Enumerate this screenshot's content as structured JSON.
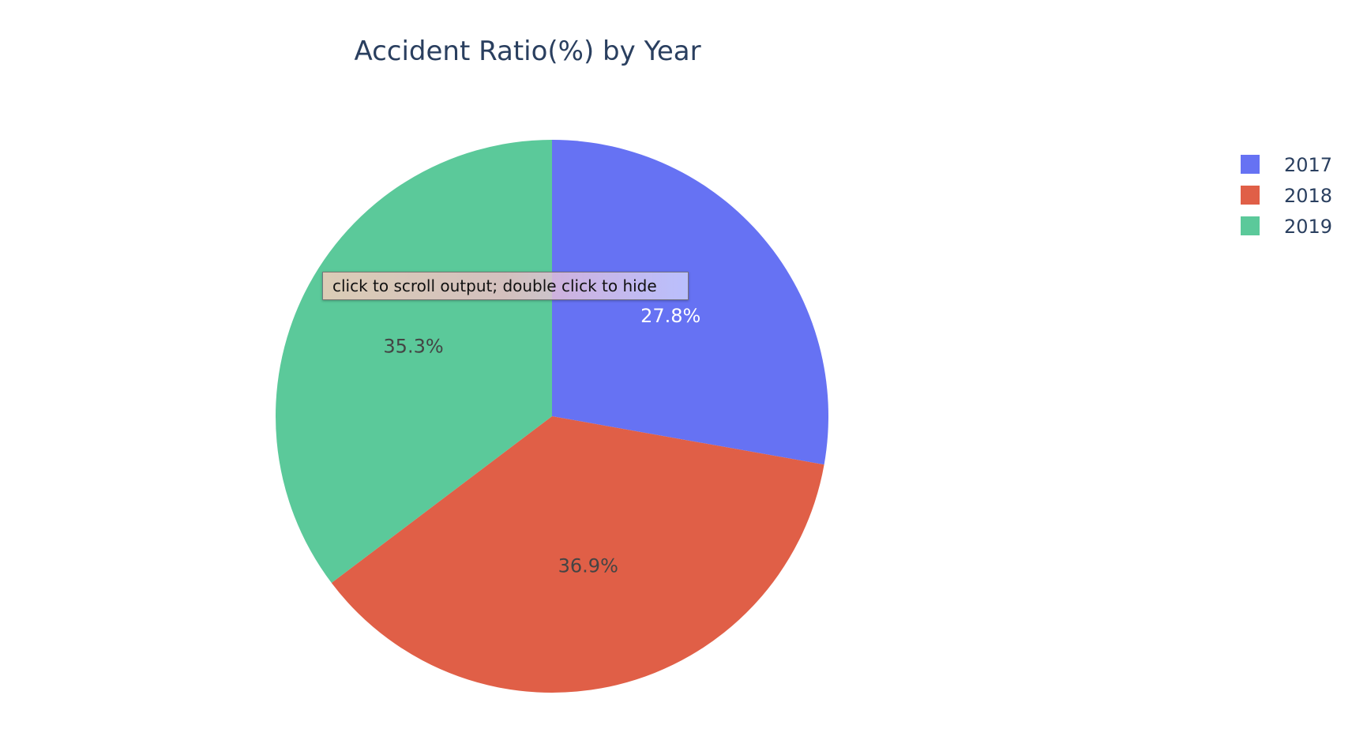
{
  "chart_data": {
    "type": "pie",
    "title": "Accident Ratio(%) by Year",
    "labels": [
      "2017",
      "2018",
      "2019"
    ],
    "values": [
      27.8,
      36.9,
      35.3
    ],
    "value_labels": [
      "27.8%",
      "36.9%",
      "35.3%"
    ],
    "colors": [
      "#636efa",
      "#ef553b",
      "#00cc96"
    ],
    "rendered_colors": [
      "#6672f3",
      "#e05f47",
      "#5bc99a"
    ],
    "label_colors": [
      "#ffffff",
      "#444444",
      "#444444"
    ],
    "sort": "clockwise from 12 o'clock",
    "legend": {
      "position": "top-right",
      "items": [
        "2017",
        "2018",
        "2019"
      ]
    }
  },
  "tooltip": {
    "text": "click to scroll output; double click to hide"
  }
}
